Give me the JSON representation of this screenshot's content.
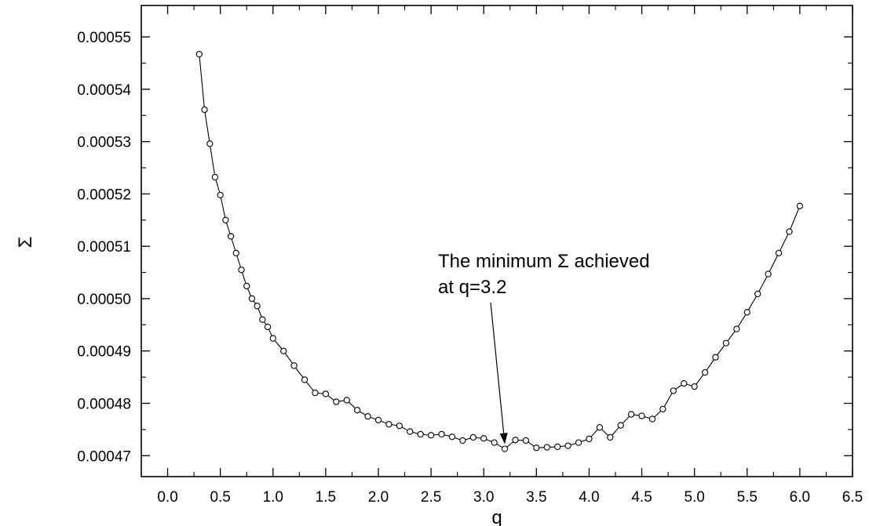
{
  "chart_data": {
    "type": "line",
    "title": "",
    "xlabel": "q",
    "ylabel": "Σ",
    "xlim": [
      -0.25,
      6.5
    ],
    "ylim": [
      0.000466,
      0.000556
    ],
    "xticks": [
      "0.0",
      "0.5",
      "1.0",
      "1.5",
      "2.0",
      "2.5",
      "3.0",
      "3.5",
      "4.0",
      "4.5",
      "5.0",
      "5.5",
      "6.0",
      "6.5"
    ],
    "yticks": [
      "0.00047",
      "0.00048",
      "0.00049",
      "0.00050",
      "0.00051",
      "0.00052",
      "0.00053",
      "0.00054",
      "0.00055"
    ],
    "marker": "open-circle",
    "grid": false,
    "annotation": {
      "lines": [
        "The minimum Σ achieved",
        "at q=3.2"
      ],
      "target": [
        3.2,
        0.000471
      ]
    },
    "series": [
      {
        "color": "#000000",
        "x": [
          0.3,
          0.35,
          0.4,
          0.45,
          0.5,
          0.55,
          0.6,
          0.65,
          0.7,
          0.75,
          0.8,
          0.85,
          0.9,
          0.95,
          1.0,
          1.1,
          1.2,
          1.3,
          1.4,
          1.5,
          1.6,
          1.7,
          1.8,
          1.9,
          2.0,
          2.1,
          2.2,
          2.3,
          2.4,
          2.5,
          2.6,
          2.7,
          2.8,
          2.9,
          3.0,
          3.1,
          3.2,
          3.3,
          3.4,
          3.5,
          3.6,
          3.7,
          3.8,
          3.9,
          4.0,
          4.1,
          4.2,
          4.3,
          4.4,
          4.5,
          4.6,
          4.7,
          4.8,
          4.9,
          5.0,
          5.1,
          5.2,
          5.3,
          5.4,
          5.5,
          5.6,
          5.7,
          5.8,
          5.9,
          6.0
        ],
        "values": [
          0.0005467,
          0.0005361,
          0.0005296,
          0.0005232,
          0.0005198,
          0.000515,
          0.0005119,
          0.0005087,
          0.0005055,
          0.0005024,
          0.0005,
          0.0004986,
          0.000496,
          0.0004946,
          0.0004924,
          0.00049,
          0.0004872,
          0.0004845,
          0.000482,
          0.0004818,
          0.0004803,
          0.0004806,
          0.0004787,
          0.0004775,
          0.0004768,
          0.000476,
          0.0004757,
          0.0004746,
          0.0004741,
          0.0004739,
          0.0004741,
          0.0004736,
          0.0004729,
          0.0004735,
          0.0004733,
          0.0004725,
          0.0004713,
          0.000473,
          0.0004729,
          0.0004715,
          0.0004716,
          0.0004717,
          0.0004719,
          0.0004725,
          0.0004732,
          0.0004754,
          0.0004735,
          0.0004758,
          0.0004779,
          0.0004776,
          0.000477,
          0.0004789,
          0.0004824,
          0.0004838,
          0.0004832,
          0.0004859,
          0.0004888,
          0.0004915,
          0.0004942,
          0.0004974,
          0.0005009,
          0.0005047,
          0.0005087,
          0.0005128,
          0.0005177
        ]
      }
    ]
  }
}
